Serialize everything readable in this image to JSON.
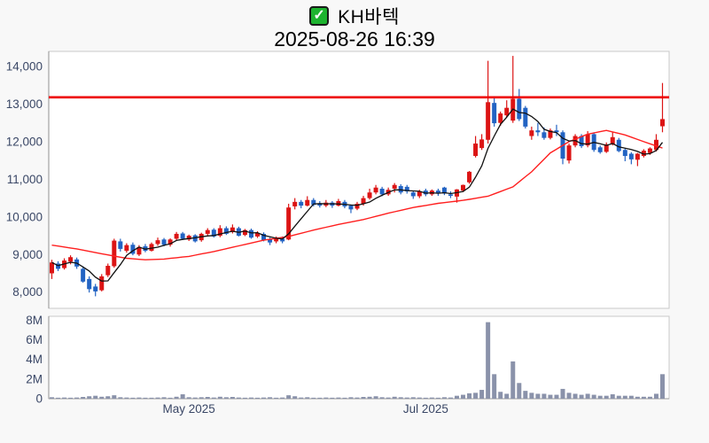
{
  "title": {
    "stock_name": "KH바텍",
    "datetime": "2025-08-26 16:39",
    "check_glyph": "✓"
  },
  "chart_data": {
    "type": "candlestick_with_volume",
    "title": "KH바텍",
    "subtitle": "2025-08-26 16:39",
    "legend_position": "none",
    "grid": false,
    "price_axis": {
      "range": [
        7570,
        14400
      ],
      "ticks": [
        {
          "label": "14,000",
          "value": 14000
        },
        {
          "label": "13,000",
          "value": 13000
        },
        {
          "label": "12,000",
          "value": 12000
        },
        {
          "label": "11,000",
          "value": 11000
        },
        {
          "label": "10,000",
          "value": 10000
        },
        {
          "label": "9,000",
          "value": 9000
        },
        {
          "label": "8,000",
          "value": 8000
        }
      ]
    },
    "volume_axis": {
      "range_millions": [
        0,
        8.4
      ],
      "ticks": [
        {
          "label": "8M",
          "value": 8
        },
        {
          "label": "6M",
          "value": 6
        },
        {
          "label": "4M",
          "value": 4
        },
        {
          "label": "2M",
          "value": 2
        },
        {
          "label": "0",
          "value": 0
        }
      ]
    },
    "x_ticks": [
      {
        "label": "May 2025",
        "index": 22
      },
      {
        "label": "Jul 2025",
        "index": 60
      }
    ],
    "reference_line": {
      "value": 13180,
      "color": "#ee0000"
    },
    "up_color": "#dc1414",
    "down_color": "#2263c3",
    "volume_color": "#8a92aa",
    "ma_fast": {
      "kind": "sma",
      "period": 5,
      "color": "#111111"
    },
    "ma_slow": {
      "kind": "anchors",
      "color": "#ff1f1f"
    },
    "ma_slow_anchors": [
      [
        0,
        9250
      ],
      [
        4,
        9150
      ],
      [
        8,
        9020
      ],
      [
        12,
        8900
      ],
      [
        15,
        8860
      ],
      [
        18,
        8880
      ],
      [
        22,
        8950
      ],
      [
        26,
        9080
      ],
      [
        30,
        9230
      ],
      [
        34,
        9380
      ],
      [
        38,
        9480
      ],
      [
        42,
        9650
      ],
      [
        46,
        9800
      ],
      [
        50,
        9930
      ],
      [
        54,
        10100
      ],
      [
        58,
        10250
      ],
      [
        62,
        10360
      ],
      [
        66,
        10440
      ],
      [
        70,
        10550
      ],
      [
        74,
        10800
      ],
      [
        77,
        11200
      ],
      [
        80,
        11700
      ],
      [
        83,
        12000
      ],
      [
        86,
        12200
      ],
      [
        89,
        12300
      ],
      [
        92,
        12180
      ],
      [
        95,
        12000
      ],
      [
        98,
        11830
      ]
    ],
    "candles_ohlc": [
      [
        8500,
        8860,
        8350,
        8790
      ],
      [
        8760,
        8820,
        8560,
        8620
      ],
      [
        8640,
        8900,
        8600,
        8840
      ],
      [
        8810,
        8980,
        8740,
        8930
      ],
      [
        8870,
        8920,
        8620,
        8680
      ],
      [
        8620,
        8680,
        8250,
        8280
      ],
      [
        8350,
        8420,
        7990,
        8080
      ],
      [
        8150,
        8220,
        7890,
        8020
      ],
      [
        8050,
        8480,
        8020,
        8420
      ],
      [
        8450,
        8760,
        8400,
        8700
      ],
      [
        8690,
        9420,
        8650,
        9370
      ],
      [
        9350,
        9420,
        9080,
        9150
      ],
      [
        9100,
        9300,
        9050,
        9250
      ],
      [
        9260,
        9320,
        8980,
        9020
      ],
      [
        9000,
        9250,
        8960,
        9200
      ],
      [
        9220,
        9280,
        9060,
        9100
      ],
      [
        9100,
        9320,
        9080,
        9280
      ],
      [
        9280,
        9450,
        9230,
        9380
      ],
      [
        9400,
        9440,
        9220,
        9260
      ],
      [
        9260,
        9430,
        9210,
        9400
      ],
      [
        9420,
        9600,
        9380,
        9550
      ],
      [
        9560,
        9600,
        9390,
        9420
      ],
      [
        9400,
        9530,
        9360,
        9500
      ],
      [
        9510,
        9540,
        9320,
        9350
      ],
      [
        9380,
        9580,
        9340,
        9550
      ],
      [
        9550,
        9700,
        9500,
        9650
      ],
      [
        9660,
        9700,
        9450,
        9480
      ],
      [
        9500,
        9780,
        9460,
        9700
      ],
      [
        9700,
        9750,
        9520,
        9550
      ],
      [
        9600,
        9800,
        9560,
        9720
      ],
      [
        9700,
        9740,
        9480,
        9500
      ],
      [
        9520,
        9680,
        9490,
        9650
      ],
      [
        9650,
        9690,
        9420,
        9450
      ],
      [
        9480,
        9620,
        9440,
        9570
      ],
      [
        9550,
        9590,
        9350,
        9380
      ],
      [
        9400,
        9450,
        9250,
        9320
      ],
      [
        9350,
        9480,
        9300,
        9450
      ],
      [
        9420,
        9480,
        9300,
        9350
      ],
      [
        9400,
        10350,
        9380,
        10250
      ],
      [
        10280,
        10500,
        10200,
        10400
      ],
      [
        10400,
        10450,
        10230,
        10300
      ],
      [
        10300,
        10550,
        10280,
        10450
      ],
      [
        10450,
        10500,
        10280,
        10320
      ],
      [
        10350,
        10420,
        10250,
        10300
      ],
      [
        10300,
        10450,
        10260,
        10380
      ],
      [
        10380,
        10420,
        10240,
        10300
      ],
      [
        10300,
        10480,
        10280,
        10420
      ],
      [
        10400,
        10450,
        10230,
        10280
      ],
      [
        10300,
        10330,
        10100,
        10200
      ],
      [
        10220,
        10400,
        10180,
        10350
      ],
      [
        10350,
        10560,
        10300,
        10500
      ],
      [
        10500,
        10750,
        10460,
        10650
      ],
      [
        10650,
        10850,
        10600,
        10780
      ],
      [
        10750,
        10800,
        10550,
        10600
      ],
      [
        10600,
        10780,
        10560,
        10720
      ],
      [
        10750,
        10900,
        10650,
        10850
      ],
      [
        10820,
        10870,
        10600,
        10650
      ],
      [
        10800,
        10850,
        10620,
        10680
      ],
      [
        10650,
        10700,
        10480,
        10550
      ],
      [
        10550,
        10720,
        10500,
        10680
      ],
      [
        10700,
        10750,
        10550,
        10600
      ],
      [
        10600,
        10730,
        10560,
        10700
      ],
      [
        10700,
        10750,
        10560,
        10620
      ],
      [
        10780,
        10800,
        10580,
        10620
      ],
      [
        10600,
        10680,
        10500,
        10560
      ],
      [
        10540,
        10740,
        10380,
        10730
      ],
      [
        10700,
        10860,
        10660,
        10850
      ],
      [
        10920,
        11220,
        10880,
        11200
      ],
      [
        11620,
        12150,
        11580,
        11950
      ],
      [
        11830,
        12200,
        11780,
        12060
      ],
      [
        12050,
        14150,
        11950,
        13050
      ],
      [
        13030,
        13180,
        12400,
        12490
      ],
      [
        12500,
        12800,
        12420,
        12750
      ],
      [
        12700,
        13100,
        12650,
        12900
      ],
      [
        12560,
        14280,
        12500,
        13140
      ],
      [
        13140,
        13400,
        12550,
        12600
      ],
      [
        12900,
        12950,
        12350,
        12400
      ],
      [
        12150,
        12400,
        12050,
        12300
      ],
      [
        12300,
        12500,
        12150,
        12250
      ],
      [
        12250,
        12380,
        12050,
        12100
      ],
      [
        12100,
        12350,
        12060,
        12300
      ],
      [
        12300,
        12450,
        12150,
        12250
      ],
      [
        12250,
        12300,
        11400,
        11550
      ],
      [
        11500,
        11950,
        11420,
        11900
      ],
      [
        11900,
        12200,
        11850,
        12150
      ],
      [
        12150,
        12200,
        11830,
        11880
      ],
      [
        11900,
        12280,
        11850,
        12200
      ],
      [
        12200,
        12250,
        11730,
        11780
      ],
      [
        11850,
        11900,
        11680,
        11720
      ],
      [
        11730,
        11980,
        11700,
        11930
      ],
      [
        11930,
        12250,
        11900,
        12120
      ],
      [
        12050,
        12100,
        11720,
        11750
      ],
      [
        11780,
        11820,
        11480,
        11620
      ],
      [
        11680,
        11720,
        11400,
        11530
      ],
      [
        11520,
        11700,
        11350,
        11680
      ],
      [
        11620,
        11800,
        11580,
        11760
      ],
      [
        11700,
        11850,
        11650,
        11820
      ],
      [
        11780,
        12200,
        11740,
        12050
      ],
      [
        12410,
        13560,
        12250,
        12600
      ]
    ],
    "volumes_millions": [
      0.15,
      0.1,
      0.12,
      0.1,
      0.12,
      0.18,
      0.25,
      0.3,
      0.2,
      0.25,
      0.35,
      0.15,
      0.12,
      0.1,
      0.12,
      0.1,
      0.1,
      0.12,
      0.15,
      0.1,
      0.2,
      0.45,
      0.15,
      0.12,
      0.15,
      0.18,
      0.12,
      0.2,
      0.15,
      0.18,
      0.12,
      0.1,
      0.12,
      0.1,
      0.12,
      0.15,
      0.1,
      0.12,
      0.35,
      0.25,
      0.12,
      0.15,
      0.1,
      0.1,
      0.12,
      0.1,
      0.12,
      0.1,
      0.15,
      0.12,
      0.18,
      0.2,
      0.25,
      0.15,
      0.12,
      0.2,
      0.15,
      0.12,
      0.15,
      0.12,
      0.1,
      0.12,
      0.1,
      0.15,
      0.12,
      0.3,
      0.4,
      0.55,
      0.6,
      0.9,
      7.8,
      2.5,
      0.7,
      0.5,
      3.8,
      1.6,
      0.8,
      0.6,
      0.5,
      0.5,
      0.4,
      0.4,
      1.0,
      0.6,
      0.5,
      0.4,
      0.5,
      0.4,
      0.3,
      0.3,
      0.45,
      0.3,
      0.3,
      0.3,
      0.2,
      0.2,
      0.2,
      0.5,
      2.5
    ],
    "layout": {
      "plot_left": 55,
      "plot_right": 755,
      "price_top": 58,
      "price_bottom": 348,
      "vol_top": 357,
      "vol_bottom": 450
    },
    "axis_text_color": "#3a4766",
    "plot_border_color": "#c9c9c9"
  }
}
